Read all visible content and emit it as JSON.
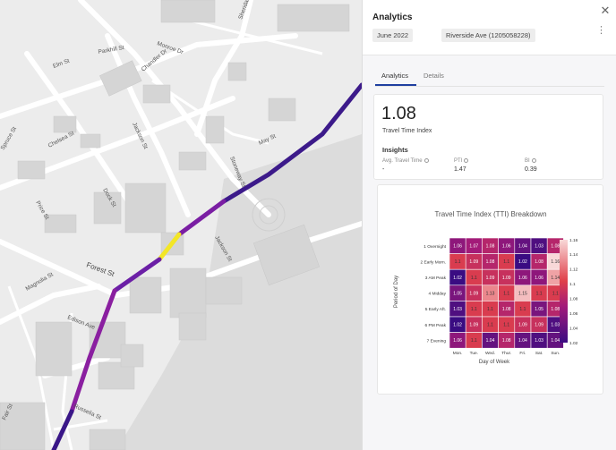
{
  "map": {
    "streets": [
      "Elm St",
      "Chelsea St",
      "Jackson St",
      "Sheridan St",
      "May St",
      "Stoneway St",
      "Spruce St",
      "Price St",
      "Dock St",
      "Forest St",
      "Magnolia St",
      "Edison Ave",
      "Jackson St",
      "Russelia St",
      "Fair St",
      "Parkhill St",
      "Monroe Dr",
      "Chandler Dr"
    ],
    "route_colors": [
      "#3c1a8a",
      "#5a1b9e",
      "#8a1fa0",
      "#f3e626",
      "#6b1fa6",
      "#3a1788"
    ]
  },
  "panel": {
    "title": "Analytics",
    "chips": [
      "June 2022",
      "Riverside Ave (1205058228)"
    ],
    "tabs": [
      "Analytics",
      "Details"
    ],
    "active_tab": "Analytics",
    "kpi": {
      "value": "1.08",
      "label": "Travel Time Index"
    },
    "insights": {
      "title": "Insights",
      "metrics": [
        {
          "label": "Avg. Travel Time",
          "value": "-"
        },
        {
          "label": "PTI",
          "value": "1.47"
        },
        {
          "label": "BI",
          "value": "0.39"
        }
      ]
    }
  },
  "chart_data": {
    "type": "heatmap",
    "title": "Travel Time Index (TTI) Breakdown",
    "xlabel": "Day of Week",
    "ylabel": "Period of Day",
    "x": [
      "Mon.",
      "Tue.",
      "Wed.",
      "Thur.",
      "Fri.",
      "Sat.",
      "Sun."
    ],
    "y": [
      "1 Overnight",
      "2 Early Morn.",
      "3 AM Peak",
      "4 Midday",
      "5 Early Aft.",
      "6 PM Peak",
      "7 Evening"
    ],
    "values": [
      [
        1.06,
        1.07,
        1.08,
        1.06,
        1.04,
        1.03,
        1.08
      ],
      [
        1.1,
        1.09,
        1.08,
        1.1,
        1.02,
        1.08,
        1.16
      ],
      [
        1.02,
        1.1,
        1.09,
        1.09,
        1.06,
        1.06,
        1.14
      ],
      [
        1.05,
        1.09,
        1.13,
        1.1,
        1.15,
        1.1,
        1.1
      ],
      [
        1.03,
        1.1,
        1.1,
        1.08,
        1.1,
        1.05,
        1.08
      ],
      [
        1.02,
        1.09,
        1.1,
        1.1,
        1.09,
        1.09,
        1.03
      ],
      [
        1.06,
        1.1,
        1.04,
        1.08,
        1.04,
        1.03,
        1.04
      ]
    ],
    "colorbar": {
      "ticks": [
        1.16,
        1.14,
        1.12,
        1.1,
        1.08,
        1.06,
        1.04,
        1.02
      ],
      "range": [
        1.02,
        1.16
      ]
    },
    "colors": {
      "low": "#3a0c82",
      "mid": "#e0404a",
      "high": "#f8d8d8"
    }
  }
}
